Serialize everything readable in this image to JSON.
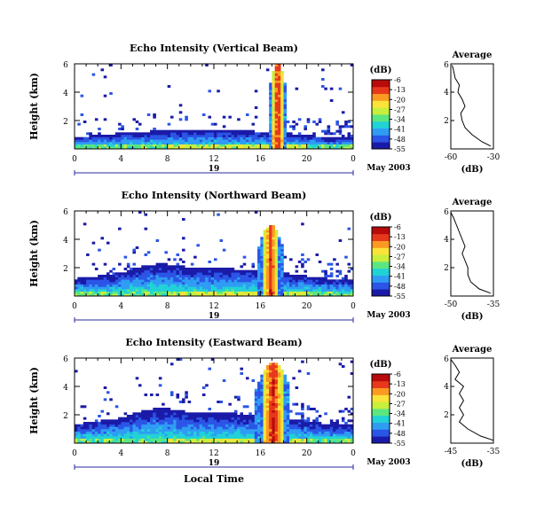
{
  "figure": {
    "shared_xlabel": "Local Time",
    "date_label": "May 2003",
    "day_label": "19",
    "avg_title": "Average",
    "avg_xlabel": "(dB)",
    "cbar_title": "(dB)"
  },
  "colormap": [
    "#1a1aa8",
    "#2b55e6",
    "#2f9cf4",
    "#21d2d6",
    "#5ce680",
    "#c7ef3c",
    "#fbe33b",
    "#fb9a22",
    "#e8381c",
    "#b80b0b"
  ],
  "chart_data": [
    {
      "type": "heatmap",
      "title": "Echo Intensity (Vertical Beam)",
      "ylabel": "Height (km)",
      "xlabel": "Local Time",
      "x_ticks": [
        "0",
        "4",
        "8",
        "12",
        "16",
        "20",
        "0"
      ],
      "x_ticks_hours": [
        0,
        4,
        8,
        12,
        16,
        20,
        24
      ],
      "y_ticks": [
        2,
        4,
        6
      ],
      "y_range": [
        0,
        6
      ],
      "x_range_hours": [
        0,
        24
      ],
      "colorbar": {
        "ticks": [
          -6,
          -13,
          -20,
          -27,
          -34,
          -41,
          -48,
          -55
        ],
        "range": [
          -55,
          -6
        ]
      },
      "structure": {
        "boundary_layer_top_km": 1.5,
        "convective_core_hours": [
          16.7,
          18.3
        ],
        "max_echo_top_km": 6.0,
        "core_peak_db": -6
      },
      "average_profile": {
        "x_ticks": [
          -60,
          -30
        ],
        "x_range": [
          -60,
          -30
        ],
        "y_ticks": [
          2,
          4
        ],
        "height_km": [
          0.2,
          0.5,
          1.0,
          1.5,
          2.0,
          2.5,
          3.0,
          3.5,
          4.0,
          4.5,
          5.0,
          5.5,
          5.9
        ],
        "db": [
          -32,
          -38,
          -45,
          -50,
          -52,
          -53,
          -50,
          -52,
          -55,
          -54,
          -57,
          -58,
          -59
        ]
      }
    },
    {
      "type": "heatmap",
      "title": "Echo Intensity (Northward Beam)",
      "ylabel": "Height (km)",
      "xlabel": "Local Time",
      "x_ticks": [
        "0",
        "4",
        "8",
        "12",
        "16",
        "20",
        "0"
      ],
      "x_ticks_hours": [
        0,
        4,
        8,
        12,
        16,
        20,
        24
      ],
      "y_ticks": [
        2,
        4,
        6
      ],
      "y_range": [
        0,
        6
      ],
      "x_range_hours": [
        0,
        24
      ],
      "colorbar": {
        "ticks": [
          -6,
          -13,
          -20,
          -27,
          -34,
          -41,
          -48,
          -55
        ],
        "range": [
          -55,
          -6
        ]
      },
      "structure": {
        "boundary_layer_top_km": 2.2,
        "convective_core_hours": [
          15.8,
          18.0
        ],
        "max_echo_top_km": 5.0,
        "core_peak_db": -8
      },
      "average_profile": {
        "x_ticks": [
          -50,
          -35
        ],
        "x_range": [
          -50,
          -35
        ],
        "y_ticks": [
          2,
          4
        ],
        "height_km": [
          0.2,
          0.5,
          1.0,
          1.5,
          2.0,
          2.5,
          3.0,
          3.5,
          4.0,
          4.5,
          5.0,
          5.5,
          5.9
        ],
        "db": [
          -36,
          -40,
          -43,
          -44,
          -44,
          -45,
          -46,
          -45,
          -46,
          -47,
          -48,
          -49,
          -50
        ]
      }
    },
    {
      "type": "heatmap",
      "title": "Echo Intensity (Eastward Beam)",
      "ylabel": "Height (km)",
      "xlabel": "Local Time",
      "x_ticks": [
        "0",
        "4",
        "8",
        "12",
        "16",
        "20",
        "0"
      ],
      "x_ticks_hours": [
        0,
        4,
        8,
        12,
        16,
        20,
        24
      ],
      "y_ticks": [
        2,
        4,
        6
      ],
      "y_range": [
        0,
        6
      ],
      "x_range_hours": [
        0,
        24
      ],
      "colorbar": {
        "ticks": [
          -6,
          -13,
          -20,
          -27,
          -34,
          -41,
          -48,
          -55
        ],
        "range": [
          -55,
          -6
        ]
      },
      "structure": {
        "boundary_layer_top_km": 2.4,
        "convective_core_hours": [
          15.6,
          18.6
        ],
        "max_echo_top_km": 5.7,
        "core_peak_db": -6
      },
      "average_profile": {
        "x_ticks": [
          -45,
          -35
        ],
        "x_range": [
          -45,
          -35
        ],
        "y_ticks": [
          2,
          4
        ],
        "height_km": [
          0.2,
          0.5,
          1.0,
          1.5,
          2.0,
          2.5,
          3.0,
          3.5,
          4.0,
          4.5,
          5.0,
          5.5,
          5.9
        ],
        "db": [
          -35,
          -38,
          -41,
          -43,
          -42,
          -43,
          -42,
          -43,
          -42,
          -44,
          -43,
          -44,
          -45
        ]
      }
    }
  ]
}
